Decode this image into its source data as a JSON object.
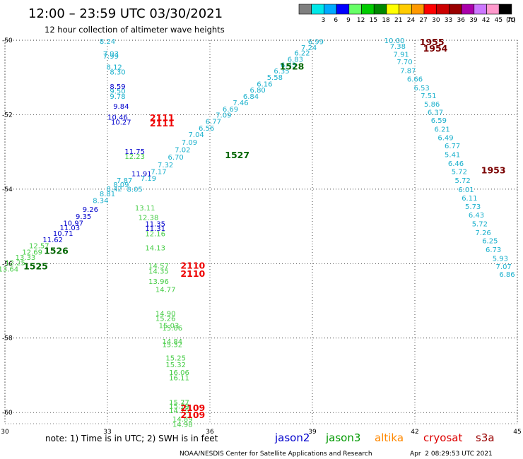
{
  "header": {
    "title": "12:00 – 23:59 UTC 03/30/2021",
    "subtitle": "12 hour collection of altimeter wave heights"
  },
  "colorbar": {
    "unit": "(ft)",
    "bins": [
      {
        "color": "#7f7f7f",
        "label": ""
      },
      {
        "color": "#00e8e8",
        "label": "3"
      },
      {
        "color": "#00aaff",
        "label": "6"
      },
      {
        "color": "#0000ff",
        "label": "9"
      },
      {
        "color": "#66ff66",
        "label": "12"
      },
      {
        "color": "#00cc00",
        "label": "15"
      },
      {
        "color": "#008800",
        "label": "18"
      },
      {
        "color": "#ffff00",
        "label": "21"
      },
      {
        "color": "#ffcc00",
        "label": "24"
      },
      {
        "color": "#ff9900",
        "label": "27"
      },
      {
        "color": "#ff0000",
        "label": "30"
      },
      {
        "color": "#cc0000",
        "label": "33"
      },
      {
        "color": "#990000",
        "label": "36"
      },
      {
        "color": "#aa00aa",
        "label": "39"
      },
      {
        "color": "#cc77ff",
        "label": "42"
      },
      {
        "color": "#ff99cc",
        "label": "45"
      },
      {
        "color": "#000000",
        "label": "70"
      }
    ]
  },
  "map": {
    "lon_range": [
      30,
      45
    ],
    "lat_range": [
      -60.3,
      -50
    ],
    "x_ticks": [
      {
        "v": 30,
        "label": "30"
      },
      {
        "v": 33,
        "label": "33"
      },
      {
        "v": 36,
        "label": "36"
      },
      {
        "v": 39,
        "label": "39"
      },
      {
        "v": 42,
        "label": "42"
      },
      {
        "v": 45,
        "label": "45"
      }
    ],
    "y_ticks": [
      {
        "v": -50,
        "label": "-50"
      },
      {
        "v": -52,
        "label": "-52"
      },
      {
        "v": -54,
        "label": "-54"
      },
      {
        "v": -56,
        "label": "-56"
      },
      {
        "v": -58,
        "label": "-58"
      },
      {
        "v": -60,
        "label": "-60"
      }
    ]
  },
  "tracks": [
    {
      "satellite": "s3a",
      "color": "#1ab0cc",
      "points": [
        {
          "lon": 33.0,
          "lat": -50.02,
          "v": "8.24"
        },
        {
          "lon": 33.1,
          "lat": -50.35,
          "v": "7.93"
        },
        {
          "lon": 33.1,
          "lat": -50.42,
          "v": "7.99"
        },
        {
          "lon": 33.2,
          "lat": -50.71,
          "v": "8.12"
        },
        {
          "lon": 33.3,
          "lat": -50.84,
          "v": "8.30"
        },
        {
          "lon": 33.3,
          "lat": -51.36,
          "v": "9.50"
        },
        {
          "lon": 33.3,
          "lat": -51.5,
          "v": "9.78"
        },
        {
          "lon": 33.5,
          "lat": -53.76,
          "v": "7.87"
        },
        {
          "lon": 33.4,
          "lat": -53.87,
          "v": "8.09"
        },
        {
          "lon": 33.8,
          "lat": -53.99,
          "v": "8.05"
        },
        {
          "lon": 33.2,
          "lat": -53.98,
          "v": "8.42"
        },
        {
          "lon": 33.0,
          "lat": -54.12,
          "v": "8.81"
        },
        {
          "lon": 32.8,
          "lat": -54.3,
          "v": "8.34"
        },
        {
          "lon": 34.2,
          "lat": -53.7,
          "v": "7.19"
        },
        {
          "lon": 34.5,
          "lat": -53.52,
          "v": "7.17"
        },
        {
          "lon": 34.7,
          "lat": -53.34,
          "v": "7.32"
        },
        {
          "lon": 35.0,
          "lat": -53.13,
          "v": "6.70"
        },
        {
          "lon": 35.2,
          "lat": -52.93,
          "v": "7.02"
        },
        {
          "lon": 35.4,
          "lat": -52.73,
          "v": "7.09"
        },
        {
          "lon": 35.6,
          "lat": -52.52,
          "v": "7.04"
        },
        {
          "lon": 35.9,
          "lat": -52.35,
          "v": "6.56"
        },
        {
          "lon": 36.1,
          "lat": -52.17,
          "v": "6.77"
        },
        {
          "lon": 36.4,
          "lat": -52.0,
          "v": "7.09"
        },
        {
          "lon": 36.6,
          "lat": -51.84,
          "v": "6.69"
        },
        {
          "lon": 36.9,
          "lat": -51.67,
          "v": "7.46"
        },
        {
          "lon": 37.2,
          "lat": -51.5,
          "v": "6.84"
        },
        {
          "lon": 37.4,
          "lat": -51.33,
          "v": "6.80"
        },
        {
          "lon": 37.6,
          "lat": -51.17,
          "v": "6.16"
        },
        {
          "lon": 37.9,
          "lat": -50.99,
          "v": "5.58"
        },
        {
          "lon": 38.1,
          "lat": -50.82,
          "v": "6.35"
        },
        {
          "lon": 38.3,
          "lat": -50.65,
          "v": "6.43"
        },
        {
          "lon": 38.5,
          "lat": -50.5,
          "v": "6.83"
        },
        {
          "lon": 38.7,
          "lat": -50.33,
          "v": "6.22"
        },
        {
          "lon": 38.9,
          "lat": -50.19,
          "v": "7.24"
        },
        {
          "lon": 39.1,
          "lat": -50.03,
          "v": "6.99"
        },
        {
          "lon": 41.4,
          "lat": -50.0,
          "v": "10.00"
        },
        {
          "lon": 41.5,
          "lat": -50.15,
          "v": "7.38"
        },
        {
          "lon": 41.6,
          "lat": -50.37,
          "v": "7.91"
        },
        {
          "lon": 41.7,
          "lat": -50.57,
          "v": "7.70"
        },
        {
          "lon": 41.8,
          "lat": -50.81,
          "v": "7.87"
        },
        {
          "lon": 42.0,
          "lat": -51.03,
          "v": "6.66"
        },
        {
          "lon": 42.2,
          "lat": -51.27,
          "v": "6.53"
        },
        {
          "lon": 42.4,
          "lat": -51.48,
          "v": "7.51"
        },
        {
          "lon": 42.5,
          "lat": -51.71,
          "v": "5.86"
        },
        {
          "lon": 42.6,
          "lat": -51.93,
          "v": "6.37"
        },
        {
          "lon": 42.7,
          "lat": -52.14,
          "v": "6.59"
        },
        {
          "lon": 42.8,
          "lat": -52.38,
          "v": "6.21"
        },
        {
          "lon": 42.9,
          "lat": -52.61,
          "v": "6.49"
        },
        {
          "lon": 43.1,
          "lat": -52.83,
          "v": "6.77"
        },
        {
          "lon": 43.1,
          "lat": -53.06,
          "v": "5.41"
        },
        {
          "lon": 43.2,
          "lat": -53.3,
          "v": "6.46"
        },
        {
          "lon": 43.3,
          "lat": -53.52,
          "v": "5.72"
        },
        {
          "lon": 43.4,
          "lat": -53.76,
          "v": "5.72"
        },
        {
          "lon": 43.5,
          "lat": -54.0,
          "v": "6.01"
        },
        {
          "lon": 43.6,
          "lat": -54.23,
          "v": "6.11"
        },
        {
          "lon": 43.7,
          "lat": -54.46,
          "v": "5.73"
        },
        {
          "lon": 43.8,
          "lat": -54.69,
          "v": "6.43"
        },
        {
          "lon": 43.9,
          "lat": -54.92,
          "v": "5.72"
        },
        {
          "lon": 44.0,
          "lat": -55.16,
          "v": "7.26"
        },
        {
          "lon": 44.2,
          "lat": -55.38,
          "v": "6.25"
        },
        {
          "lon": 44.3,
          "lat": -55.61,
          "v": "6.73"
        },
        {
          "lon": 44.5,
          "lat": -55.85,
          "v": "5.93"
        },
        {
          "lon": 44.6,
          "lat": -56.07,
          "v": "7.07"
        },
        {
          "lon": 44.7,
          "lat": -56.28,
          "v": "6.86"
        }
      ]
    },
    {
      "satellite": "jason2",
      "color": "#0000cc",
      "points": [
        {
          "lon": 33.3,
          "lat": -51.23,
          "v": "8.59"
        },
        {
          "lon": 33.4,
          "lat": -51.76,
          "v": "9.84"
        },
        {
          "lon": 33.3,
          "lat": -52.06,
          "v": "10.46"
        },
        {
          "lon": 33.4,
          "lat": -52.19,
          "v": "10.27"
        },
        {
          "lon": 33.8,
          "lat": -52.98,
          "v": "11.75"
        },
        {
          "lon": 34.0,
          "lat": -53.58,
          "v": "11.91"
        },
        {
          "lon": 34.4,
          "lat": -54.92,
          "v": "11.35"
        },
        {
          "lon": 34.4,
          "lat": -55.05,
          "v": "11.31"
        },
        {
          "lon": 32.5,
          "lat": -54.53,
          "v": "9.26"
        },
        {
          "lon": 32.3,
          "lat": -54.72,
          "v": "9.35"
        },
        {
          "lon": 32.0,
          "lat": -54.9,
          "v": "10.97"
        },
        {
          "lon": 31.9,
          "lat": -55.03,
          "v": "11.03"
        },
        {
          "lon": 31.7,
          "lat": -55.18,
          "v": "10.71"
        },
        {
          "lon": 31.4,
          "lat": -55.35,
          "v": "11.62"
        }
      ]
    },
    {
      "satellite": "jason3",
      "color": "#44cc44",
      "points": [
        {
          "lon": 33.8,
          "lat": -53.11,
          "v": "12.23"
        },
        {
          "lon": 34.1,
          "lat": -54.5,
          "v": "13.11"
        },
        {
          "lon": 34.2,
          "lat": -54.75,
          "v": "12.38"
        },
        {
          "lon": 34.4,
          "lat": -55.19,
          "v": "12.16"
        },
        {
          "lon": 34.4,
          "lat": -55.57,
          "v": "14.13"
        },
        {
          "lon": 34.5,
          "lat": -56.05,
          "v": "14.57"
        },
        {
          "lon": 34.5,
          "lat": -56.19,
          "v": "14.35"
        },
        {
          "lon": 34.5,
          "lat": -56.47,
          "v": "13.96"
        },
        {
          "lon": 34.7,
          "lat": -56.69,
          "v": "14.77"
        },
        {
          "lon": 34.7,
          "lat": -57.33,
          "v": "14.90"
        },
        {
          "lon": 34.7,
          "lat": -57.46,
          "v": "15.26"
        },
        {
          "lon": 34.8,
          "lat": -57.65,
          "v": "15.03"
        },
        {
          "lon": 34.9,
          "lat": -57.72,
          "v": "15.06"
        },
        {
          "lon": 34.9,
          "lat": -58.08,
          "v": "14.84"
        },
        {
          "lon": 34.9,
          "lat": -58.17,
          "v": "15.32"
        },
        {
          "lon": 35.0,
          "lat": -58.53,
          "v": "15.25"
        },
        {
          "lon": 35.0,
          "lat": -58.71,
          "v": "15.32"
        },
        {
          "lon": 35.1,
          "lat": -58.92,
          "v": "16.06"
        },
        {
          "lon": 35.1,
          "lat": -59.06,
          "v": "16.11"
        },
        {
          "lon": 35.1,
          "lat": -59.72,
          "v": "15.77"
        },
        {
          "lon": 35.1,
          "lat": -59.82,
          "v": "15.79"
        },
        {
          "lon": 35.1,
          "lat": -59.94,
          "v": "14.75"
        },
        {
          "lon": 35.2,
          "lat": -60.17,
          "v": "14.89"
        },
        {
          "lon": 35.2,
          "lat": -60.31,
          "v": "14.98"
        },
        {
          "lon": 31.0,
          "lat": -55.51,
          "v": "12.57"
        },
        {
          "lon": 30.8,
          "lat": -55.68,
          "v": "12.69"
        },
        {
          "lon": 30.6,
          "lat": -55.82,
          "v": "13.33"
        },
        {
          "lon": 30.3,
          "lat": -55.97,
          "v": "12.25"
        },
        {
          "lon": 30.1,
          "lat": -56.14,
          "v": "13.64"
        }
      ]
    }
  ],
  "time_labels": [
    {
      "lon": 38.4,
      "lat": -50.69,
      "t": "1528",
      "color": "#006600"
    },
    {
      "lon": 36.8,
      "lat": -53.07,
      "t": "1527",
      "color": "#006600"
    },
    {
      "lon": 31.5,
      "lat": -55.64,
      "t": "1526",
      "color": "#006600"
    },
    {
      "lon": 30.9,
      "lat": -56.06,
      "t": "1525",
      "color": "#006600"
    },
    {
      "lon": 34.6,
      "lat": -52.07,
      "t": "2111",
      "color": "#ee0000"
    },
    {
      "lon": 34.6,
      "lat": -52.22,
      "t": "2111",
      "color": "#ee0000"
    },
    {
      "lon": 35.5,
      "lat": -56.04,
      "t": "2110",
      "color": "#ee0000"
    },
    {
      "lon": 35.5,
      "lat": -56.26,
      "t": "2110",
      "color": "#ee0000"
    },
    {
      "lon": 35.5,
      "lat": -59.86,
      "t": "2109",
      "color": "#ee0000"
    },
    {
      "lon": 35.5,
      "lat": -60.05,
      "t": "2109",
      "color": "#ee0000"
    },
    {
      "lon": 42.5,
      "lat": -50.04,
      "t": "1955",
      "color": "#7a0000"
    },
    {
      "lon": 42.6,
      "lat": -50.21,
      "t": "1954",
      "color": "#7a0000"
    },
    {
      "lon": 44.3,
      "lat": -53.48,
      "t": "1953",
      "color": "#7a0000"
    }
  ],
  "footer": {
    "note": "note:  1) Time is in UTC;  2) SWH is in feet",
    "legend": [
      {
        "name": "jason2",
        "color": "#0000cc"
      },
      {
        "name": "jason3",
        "color": "#009900"
      },
      {
        "name": "altika",
        "color": "#ff8800"
      },
      {
        "name": "cryosat",
        "color": "#dd0000"
      },
      {
        "name": "s3a",
        "color": "#990000"
      }
    ],
    "credit": "NOAA/NESDIS Center for Satellite Applications and Research",
    "timestamp": "Apr  2 08:29:53 UTC 2021"
  }
}
